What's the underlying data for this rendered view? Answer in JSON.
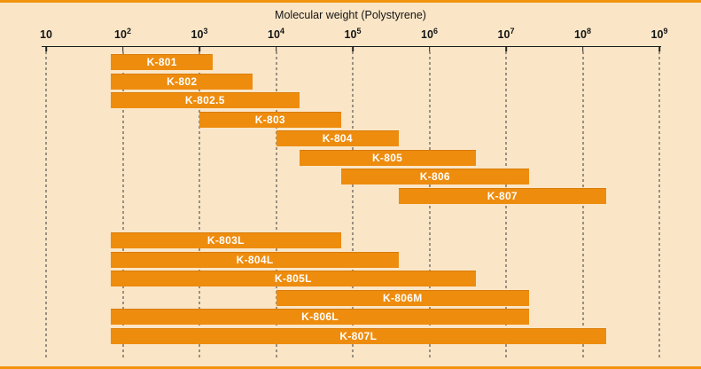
{
  "page": {
    "background_color": "#FAE6C7",
    "accent_color": "#EE8C0E",
    "border_line_color": "#F1930D"
  },
  "chart_data": {
    "type": "bar",
    "variant": "horizontal-range-bars",
    "title": "Molecular weight (Polystyrene)",
    "bar_color": "#EE8C0E",
    "bar_label_color": "#ffffff",
    "grid": "dashed-vertical-gridlines-per-decade",
    "legend": "none",
    "x_axis": {
      "scale": "log10",
      "min_exponent": 1,
      "max_exponent": 9,
      "tick_exponents": [
        1,
        2,
        3,
        4,
        5,
        6,
        7,
        8,
        9
      ],
      "xlim": [
        10,
        1000000000
      ]
    },
    "groups": [
      {
        "name": "standard-columns",
        "bars": [
          {
            "label": "K-801",
            "mw_min": 70,
            "mw_max": 1500
          },
          {
            "label": "K-802",
            "mw_min": 70,
            "mw_max": 5000
          },
          {
            "label": "K-802.5",
            "mw_min": 70,
            "mw_max": 20000
          },
          {
            "label": "K-803",
            "mw_min": 1000,
            "mw_max": 70000
          },
          {
            "label": "K-804",
            "mw_min": 10000,
            "mw_max": 400000
          },
          {
            "label": "K-805",
            "mw_min": 20000,
            "mw_max": 4000000
          },
          {
            "label": "K-806",
            "mw_min": 70000,
            "mw_max": 20000000
          },
          {
            "label": "K-807",
            "mw_min": 400000,
            "mw_max": 200000000
          }
        ]
      },
      {
        "name": "linear-columns",
        "bars": [
          {
            "label": "K-803L",
            "mw_min": 70,
            "mw_max": 70000
          },
          {
            "label": "K-804L",
            "mw_min": 70,
            "mw_max": 400000
          },
          {
            "label": "K-805L",
            "mw_min": 70,
            "mw_max": 4000000
          },
          {
            "label": "K-806M",
            "mw_min": 10000,
            "mw_max": 20000000
          },
          {
            "label": "K-806L",
            "mw_min": 70,
            "mw_max": 20000000
          },
          {
            "label": "K-807L",
            "mw_min": 70,
            "mw_max": 200000000
          }
        ]
      }
    ]
  }
}
